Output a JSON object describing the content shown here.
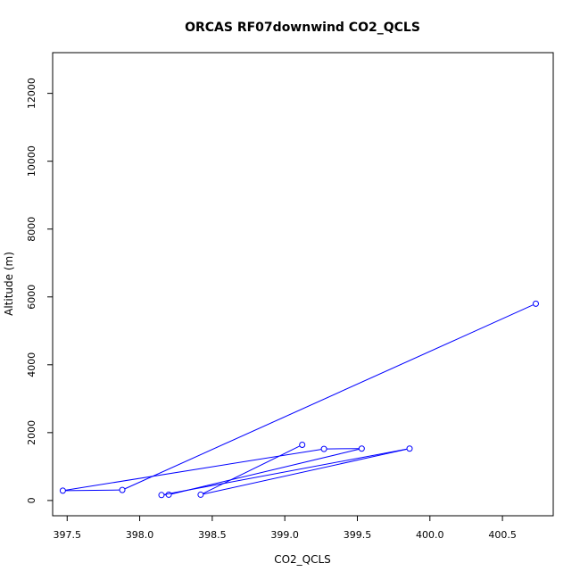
{
  "chart_data": {
    "type": "line",
    "title": "ORCAS RF07downwind CO2_QCLS",
    "xlabel": "CO2_QCLS",
    "ylabel": "Altitude (m)",
    "xlim": [
      397.4,
      400.85
    ],
    "ylim": [
      -450,
      13200
    ],
    "x_ticks": [
      397.5,
      398.0,
      398.5,
      399.0,
      399.5,
      400.0,
      400.5
    ],
    "x_tick_labels": [
      "397.5",
      "398.0",
      "398.5",
      "399.0",
      "399.5",
      "400.0",
      "400.5"
    ],
    "y_ticks": [
      0,
      2000,
      4000,
      6000,
      8000,
      10000,
      12000
    ],
    "y_tick_labels": [
      "0",
      "2000",
      "4000",
      "6000",
      "8000",
      "10000",
      "12000"
    ],
    "grid": false,
    "legend": "none",
    "series": [
      {
        "color": "#0000ff",
        "marker": "open-circle",
        "points": [
          {
            "x": 400.73,
            "y": 5800
          },
          {
            "x": 397.88,
            "y": 310
          },
          {
            "x": 397.47,
            "y": 290
          },
          {
            "x": 399.27,
            "y": 1520
          },
          {
            "x": 399.53,
            "y": 1530
          },
          {
            "x": 398.2,
            "y": 170
          },
          {
            "x": 398.15,
            "y": 160
          },
          {
            "x": 399.86,
            "y": 1530
          },
          {
            "x": 398.42,
            "y": 170
          },
          {
            "x": 399.12,
            "y": 1640
          }
        ]
      }
    ]
  }
}
